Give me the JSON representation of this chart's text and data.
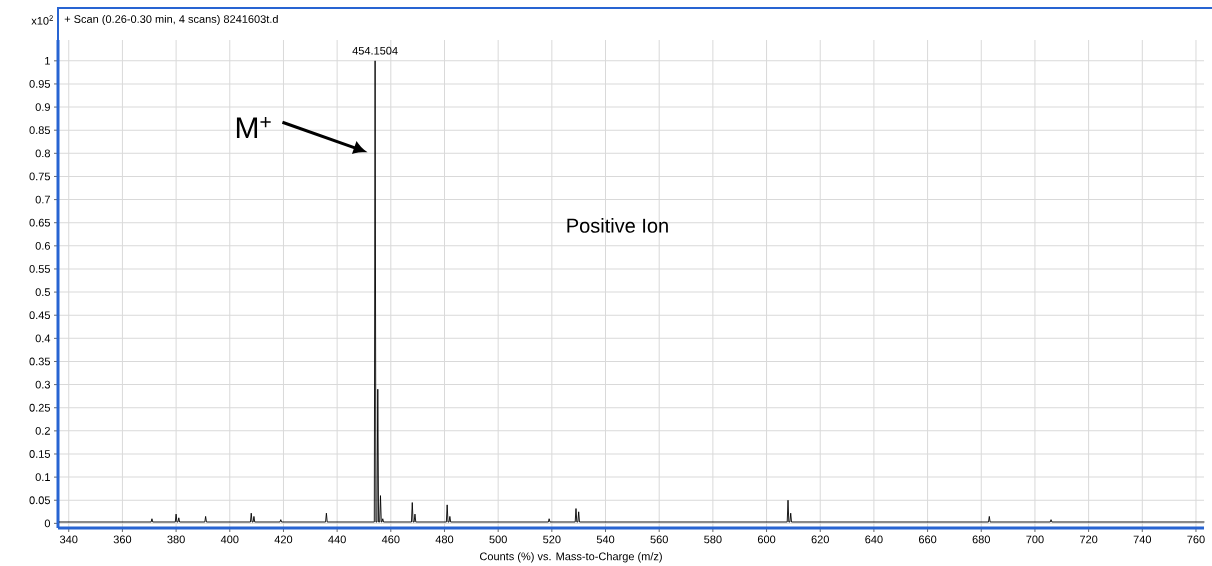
{
  "chart_data": {
    "type": "line",
    "title": "+ Scan (0.26-0.30 min, 4 scans) 8241603t.d",
    "xlabel": "Counts (%) vs. Mass-to-Charge (m/z)",
    "x": [
      336,
      370.7,
      371,
      371.3,
      379.7,
      380,
      380.3,
      380.7,
      381,
      381.3,
      390.7,
      391,
      391.3,
      407.7,
      408,
      408.3,
      408.7,
      409,
      409.3,
      418.7,
      419,
      419.3,
      435.7,
      436,
      436.3,
      453.85,
      454.1504,
      454.45,
      454.85,
      455.15,
      455.45,
      455.85,
      456.15,
      456.45,
      456.7,
      457,
      457.3,
      467.7,
      468,
      468.3,
      468.7,
      469,
      469.3,
      480.7,
      481,
      481.3,
      481.7,
      482,
      482.3,
      518.7,
      519,
      519.3,
      528.7,
      529,
      529.3,
      529.7,
      530,
      530.3,
      607.7,
      608,
      608.3,
      608.7,
      609,
      609.3,
      682.7,
      683,
      683.3,
      705.7,
      706,
      706.3,
      763
    ],
    "values": [
      0.003,
      0.003,
      0.01,
      0.003,
      0.003,
      0.02,
      0.003,
      0.003,
      0.012,
      0.003,
      0.003,
      0.015,
      0.003,
      0.003,
      0.022,
      0.003,
      0.003,
      0.015,
      0.003,
      0.003,
      0.008,
      0.003,
      0.003,
      0.022,
      0.003,
      0.003,
      1.0,
      0.003,
      0.003,
      0.29,
      0.003,
      0.003,
      0.06,
      0.003,
      0.003,
      0.01,
      0.003,
      0.003,
      0.045,
      0.003,
      0.003,
      0.02,
      0.003,
      0.003,
      0.04,
      0.003,
      0.003,
      0.015,
      0.003,
      0.003,
      0.01,
      0.003,
      0.003,
      0.032,
      0.003,
      0.003,
      0.025,
      0.003,
      0.003,
      0.05,
      0.003,
      0.003,
      0.022,
      0.003,
      0.003,
      0.015,
      0.003,
      0.003,
      0.008,
      0.003,
      0.003
    ],
    "color": "#000000",
    "xlim": [
      336,
      763
    ],
    "ylim": [
      -0.01,
      1.045
    ],
    "xticks": [
      340,
      360,
      380,
      400,
      420,
      440,
      460,
      480,
      500,
      520,
      540,
      560,
      580,
      600,
      620,
      640,
      660,
      680,
      700,
      720,
      740,
      760
    ],
    "yticks": [
      0,
      0.05,
      0.1,
      0.15,
      0.2,
      0.25,
      0.3,
      0.35,
      0.4,
      0.45,
      0.5,
      0.55,
      0.6,
      0.65,
      0.7,
      0.75,
      0.8,
      0.85,
      0.9,
      0.95,
      1
    ],
    "grid": true,
    "marker": "none",
    "line_style": "solid",
    "annotations": [
      "x10$^{2}$",
      {
        "text": "454.1504",
        "x": 454.1504,
        "y": 1.0
      },
      "M$^{+}$",
      "Positive Ion"
    ]
  }
}
